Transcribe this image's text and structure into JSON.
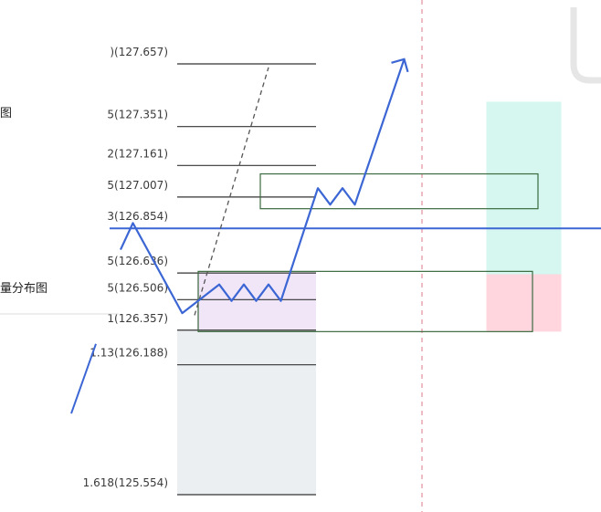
{
  "chart_data": {
    "type": "line",
    "fib_levels": [
      {
        "label": ")(127.657)",
        "price": 127.657
      },
      {
        "label": "5(127.351)",
        "price": 127.351
      },
      {
        "label": "2(127.161)",
        "price": 127.161
      },
      {
        "label": "5(127.007)",
        "price": 127.007
      },
      {
        "label": "3(126.854)",
        "price": 126.854
      },
      {
        "label": "5(126.636)",
        "price": 126.636
      },
      {
        "label": "5(126.506)",
        "price": 126.506
      },
      {
        "label": "1(126.357)",
        "price": 126.357
      },
      {
        "label": "1.13(126.188)",
        "price": 126.188
      },
      {
        "label": "1.618(125.554)",
        "price": 125.554
      }
    ],
    "horizontal_line_price": 126.854,
    "price_path": [
      {
        "t": 0,
        "p": 126.75
      },
      {
        "t": 1,
        "p": 126.88
      },
      {
        "t": 5,
        "p": 126.44
      },
      {
        "t": 8,
        "p": 126.58
      },
      {
        "t": 9,
        "p": 126.5
      },
      {
        "t": 10,
        "p": 126.58
      },
      {
        "t": 11,
        "p": 126.5
      },
      {
        "t": 12,
        "p": 126.58
      },
      {
        "t": 13,
        "p": 126.5
      },
      {
        "t": 16,
        "p": 127.05
      },
      {
        "t": 17,
        "p": 126.97
      },
      {
        "t": 18,
        "p": 127.05
      },
      {
        "t": 19,
        "p": 126.97
      },
      {
        "t": 23,
        "p": 127.68
      }
    ],
    "left_fragment": [
      {
        "t": -4,
        "p": 125.95
      },
      {
        "t": -2,
        "p": 126.29
      }
    ],
    "dashed_trend": [
      {
        "t": 6,
        "p": 126.43
      },
      {
        "t": 12,
        "p": 127.64
      }
    ],
    "zones": [
      {
        "name": "supply-zone",
        "t0": 9,
        "t1": 21,
        "p_top": 127.12,
        "p_bot": 126.95
      },
      {
        "name": "demand-zone",
        "t0": 7,
        "t1": 21,
        "p_top": 126.644,
        "p_bot": 126.35
      }
    ],
    "position_tool": {
      "t0": 29,
      "t1": 33,
      "entry": 126.63,
      "target": 127.45,
      "stop": 126.35
    },
    "colors": {
      "price_line": "#3b66d4",
      "fib_line": "#333333",
      "zone_border": "#3b6b3f",
      "profit_fill": "#d6f7ef",
      "loss_fill": "#ffd5de",
      "vline": "#e07a8a",
      "gray_band": "#e9ecef",
      "purple_band": "#f1e6f8"
    }
  },
  "side_labels": {
    "top": "图",
    "middle": "量分布图"
  }
}
